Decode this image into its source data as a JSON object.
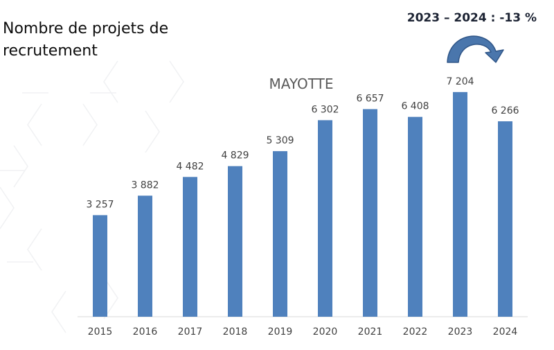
{
  "slide": {
    "title": "Nombre de projets de recrutement",
    "change_label": "2023 – 2024 : -13 %"
  },
  "colors": {
    "bar": "#4f81bd",
    "axis": "#d9d9d9",
    "arrow_fill": "#4a76ac",
    "arrow_stroke": "#2f5587",
    "text": "#404040",
    "title_text": "#595959"
  },
  "chart_data": {
    "type": "bar",
    "title": "MAYOTTE",
    "categories": [
      "2015",
      "2016",
      "2017",
      "2018",
      "2019",
      "2020",
      "2021",
      "2022",
      "2023",
      "2024"
    ],
    "values": [
      3257,
      3882,
      4482,
      4829,
      5309,
      6302,
      6657,
      6408,
      7204,
      6266
    ],
    "data_labels": [
      "3 257",
      "3 882",
      "4 482",
      "4 829",
      "5 309",
      "6 302",
      "6 657",
      "6 408",
      "7 204",
      "6 266"
    ],
    "xlabel": "",
    "ylabel": "",
    "ylim": [
      0,
      8000
    ],
    "grid": false,
    "legend": "none"
  }
}
